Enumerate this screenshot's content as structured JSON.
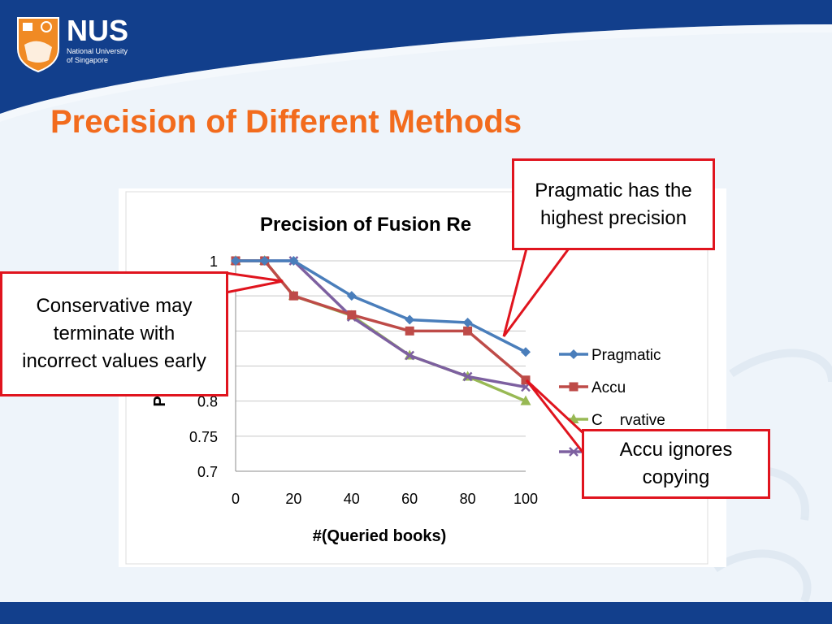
{
  "header": {
    "logo_name": "NUS",
    "logo_sub_line1": "National University",
    "logo_sub_line2": "of Singapore"
  },
  "slide": {
    "title": "Precision of Different Methods"
  },
  "callouts": {
    "pragmatic": "Pragmatic has the highest precision",
    "conservative": "Conservative may terminate with incorrect values early",
    "accu": "Accu ignores copying"
  },
  "colors": {
    "header_blue": "#123f8c",
    "title_orange": "#f26b1d",
    "callout_red": "#e0141e"
  },
  "chart_data": {
    "type": "line",
    "title": "Precision of Fusion Re",
    "xlabel": "#(Queried books)",
    "ylabel": "P",
    "ylim": [
      0.7,
      1
    ],
    "xlim": [
      0,
      100
    ],
    "x_ticks": [
      0,
      20,
      40,
      60,
      80,
      100
    ],
    "y_ticks": [
      "0.7",
      "0.75",
      "0.8",
      "1"
    ],
    "grid": true,
    "legend_position": "right",
    "series": [
      {
        "name": "Pragmatic",
        "color": "#4a7ebb",
        "marker": "diamond",
        "x": [
          0,
          10,
          20,
          40,
          60,
          80,
          100
        ],
        "y": [
          1.0,
          1.0,
          1.0,
          0.95,
          0.916,
          0.912,
          0.87
        ]
      },
      {
        "name": "Accu",
        "color": "#be4b48",
        "marker": "square",
        "x": [
          0,
          10,
          20,
          40,
          60,
          80,
          100
        ],
        "y": [
          1.0,
          1.0,
          0.95,
          0.923,
          0.9,
          0.9,
          0.83
        ]
      },
      {
        "name": "Conservative",
        "legend_label": "C    rvative",
        "color": "#98b954",
        "marker": "triangle",
        "x": [
          0,
          10,
          20,
          40,
          60,
          80,
          100
        ],
        "y": [
          1.0,
          1.0,
          0.95,
          0.922,
          0.865,
          0.835,
          0.8
        ]
      },
      {
        "name": "",
        "color": "#7d60a0",
        "marker": "x",
        "x": [
          0,
          10,
          20,
          40,
          60,
          80,
          100
        ],
        "y": [
          1.0,
          1.0,
          1.0,
          0.92,
          0.865,
          0.835,
          0.82
        ]
      }
    ]
  }
}
